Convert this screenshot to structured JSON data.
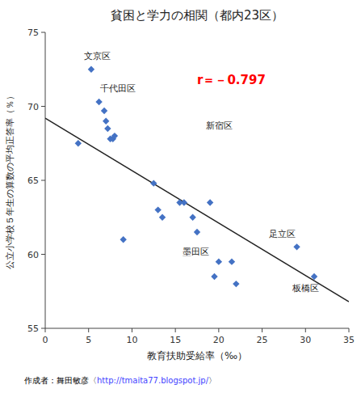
{
  "chart_data": {
    "type": "scatter",
    "title": "貧困と学力の相関（都内23区）",
    "x_label": "教育扶助受給率（‰）",
    "y_label": "公立小学校５年生の算数の平均正答率（％）",
    "xlim": [
      0,
      35
    ],
    "ylim": [
      55,
      75
    ],
    "xticks": [
      0,
      5,
      10,
      15,
      20,
      25,
      30,
      35
    ],
    "yticks": [
      55,
      60,
      65,
      70,
      75
    ],
    "series": [
      {
        "type": "scatter",
        "color": "#4472C4",
        "marker": "diamond",
        "x": [
          3.8,
          5.3,
          6.2,
          6.8,
          7.0,
          7.2,
          7.5,
          7.8,
          8.0,
          9.0,
          12.5,
          13.0,
          13.5,
          15.5,
          16.0,
          17.0,
          17.5,
          19.0,
          19.5,
          20.0,
          21.5,
          22.0,
          29.0,
          31.0
        ],
        "values": [
          67.5,
          72.5,
          70.3,
          69.7,
          69.0,
          68.5,
          67.8,
          67.8,
          68.0,
          61.0,
          64.8,
          63.0,
          62.5,
          63.5,
          63.5,
          62.5,
          61.5,
          63.5,
          58.5,
          59.5,
          59.5,
          58.0,
          60.5,
          58.5
        ]
      },
      {
        "type": "line",
        "color": "#222222",
        "line_style": "solid",
        "x": [
          0,
          35
        ],
        "values": [
          69.2,
          56.8
        ]
      }
    ],
    "annotations": [
      {
        "text": "文京区",
        "x": 4.5,
        "y": 73.2
      },
      {
        "text": "千代田区",
        "x": 6.3,
        "y": 71.0
      },
      {
        "text": "新宿区",
        "x": 18.5,
        "y": 68.5
      },
      {
        "text": "墨田区",
        "x": 15.8,
        "y": 60.0
      },
      {
        "text": "足立区",
        "x": 25.8,
        "y": 61.2
      },
      {
        "text": "板橋区",
        "x": 28.5,
        "y": 57.5
      },
      {
        "text": "r＝－0.797",
        "x": 17.5,
        "y": 71.5,
        "color": "#FF0000"
      }
    ],
    "footer": [
      {
        "text": "作成者：舞田敏彦〈",
        "color": "#000000"
      },
      {
        "text": "http://tmaita77.blogspot.jp/",
        "color": "#4444FF"
      },
      {
        "text": "〉",
        "color": "#000000"
      }
    ]
  }
}
